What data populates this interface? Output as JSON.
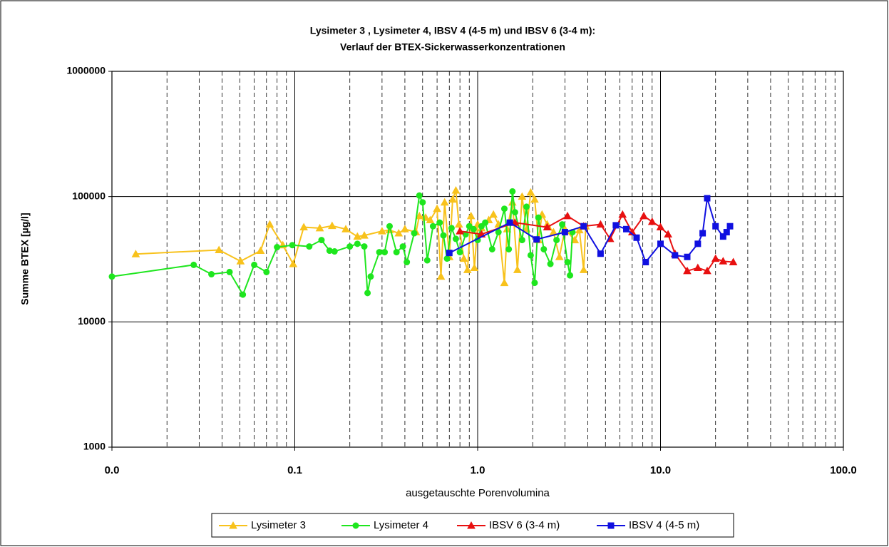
{
  "chart_data": {
    "type": "line",
    "title": [
      "Lysimeter 3 , Lysimeter 4, IBSV 4 (4-5 m) und IBSV 6 (3-4 m):",
      "Verlauf der BTEX-Sickerwasserkonzentrationen"
    ],
    "xlabel": "ausgetauschte Porenvolumina",
    "ylabel": "Summe BTEX [µg/l]",
    "xlog": true,
    "ylog": true,
    "grid": true,
    "minor_grid": true,
    "legend": "bottom",
    "xlim": [
      0.01,
      100
    ],
    "ylim": [
      1000,
      1000000
    ],
    "xticks": [
      {
        "value": 0.01,
        "label": "0.0"
      },
      {
        "value": 0.1,
        "label": "0.1"
      },
      {
        "value": 1,
        "label": "1.0"
      },
      {
        "value": 10,
        "label": "10.0"
      },
      {
        "value": 100,
        "label": "100.0"
      }
    ],
    "yticks": [
      1000,
      10000,
      100000,
      1000000
    ],
    "series": [
      {
        "name": "Lysimeter 3",
        "color": "#f8c21c",
        "marker": "triangle",
        "x": [
          0.0135,
          0.0385,
          0.0505,
          0.065,
          0.073,
          0.086,
          0.098,
          0.112,
          0.137,
          0.16,
          0.19,
          0.22,
          0.24,
          0.3,
          0.33,
          0.37,
          0.4,
          0.46,
          0.48,
          0.52,
          0.55,
          0.6,
          0.63,
          0.66,
          0.7,
          0.73,
          0.76,
          0.79,
          0.84,
          0.88,
          0.92,
          0.96,
          1.0,
          1.05,
          1.15,
          1.22,
          1.3,
          1.4,
          1.45,
          1.55,
          1.65,
          1.75,
          1.85,
          1.95,
          2.05,
          2.15,
          2.25,
          2.4,
          2.6,
          2.8,
          3.0,
          3.4,
          3.6,
          3.8,
          3.9
        ],
        "values": [
          34800,
          37500,
          30500,
          37000,
          60000,
          41000,
          29000,
          57000,
          56000,
          58500,
          55000,
          48000,
          49000,
          53000,
          54000,
          51000,
          55000,
          52000,
          70000,
          68000,
          65000,
          80000,
          23000,
          90000,
          33000,
          95000,
          112000,
          60000,
          32000,
          26000,
          70000,
          27000,
          60000,
          56000,
          65000,
          72000,
          60000,
          20500,
          55000,
          90000,
          26000,
          100000,
          55000,
          108000,
          95000,
          45000,
          72000,
          60000,
          52000,
          33000,
          55000,
          45000,
          54000,
          26000,
          58000
        ]
      },
      {
        "name": "Lysimeter 4",
        "color": "#1ee61e",
        "marker": "circle",
        "x": [
          0.01,
          0.028,
          0.035,
          0.044,
          0.052,
          0.06,
          0.07,
          0.08,
          0.097,
          0.12,
          0.14,
          0.155,
          0.165,
          0.2,
          0.22,
          0.24,
          0.25,
          0.26,
          0.29,
          0.31,
          0.33,
          0.36,
          0.39,
          0.41,
          0.45,
          0.48,
          0.5,
          0.53,
          0.57,
          0.62,
          0.65,
          0.68,
          0.72,
          0.76,
          0.8,
          0.86,
          0.9,
          0.95,
          1.0,
          1.05,
          1.1,
          1.2,
          1.3,
          1.4,
          1.48,
          1.55,
          1.6,
          1.75,
          1.85,
          1.95,
          2.05,
          2.15,
          2.3,
          2.5,
          2.7,
          2.9,
          3.1,
          3.2,
          3.3
        ],
        "values": [
          23000,
          28500,
          24000,
          25000,
          16500,
          28500,
          25000,
          39500,
          41000,
          40000,
          45000,
          37000,
          36500,
          40000,
          42000,
          40000,
          17000,
          23000,
          36000,
          36000,
          58000,
          36000,
          40000,
          30000,
          51000,
          102000,
          90000,
          31000,
          58000,
          62000,
          49000,
          32000,
          56000,
          46000,
          36000,
          50000,
          58000,
          55000,
          45000,
          58000,
          62000,
          38000,
          52000,
          80000,
          38000,
          110000,
          75000,
          45000,
          83000,
          34000,
          20500,
          68000,
          38000,
          29000,
          45000,
          60000,
          30000,
          23500,
          52000
        ]
      },
      {
        "name": "IBSV 6 (3-4 m)",
        "color": "#e81010",
        "marker": "triangle",
        "x": [
          0.8,
          1.05,
          1.6,
          2.4,
          3.1,
          3.8,
          4.7,
          5.3,
          6.2,
          7.0,
          8.1,
          9.0,
          10.0,
          11.0,
          12.0,
          14.0,
          16.0,
          18.0,
          20.0,
          22.0,
          25.0
        ],
        "values": [
          53000,
          50000,
          62000,
          57000,
          70000,
          58000,
          60000,
          46000,
          72000,
          52000,
          70000,
          63000,
          57000,
          50000,
          35000,
          25500,
          27000,
          25500,
          32000,
          30500,
          30000
        ]
      },
      {
        "name": "IBSV 4 (4-5 m)",
        "color": "#1010e0",
        "marker": "square",
        "x": [
          0.7,
          1.5,
          2.1,
          3.0,
          3.8,
          4.7,
          5.7,
          6.5,
          7.4,
          8.3,
          10.0,
          12.0,
          14.0,
          16.0,
          17.0,
          18.0,
          20.0,
          22.0,
          23.0,
          24.0
        ],
        "values": [
          35500,
          62000,
          45500,
          52000,
          58000,
          35000,
          59000,
          55000,
          47000,
          30000,
          42000,
          34000,
          33000,
          42000,
          51000,
          97000,
          58000,
          48000,
          52000,
          58000
        ]
      }
    ]
  }
}
